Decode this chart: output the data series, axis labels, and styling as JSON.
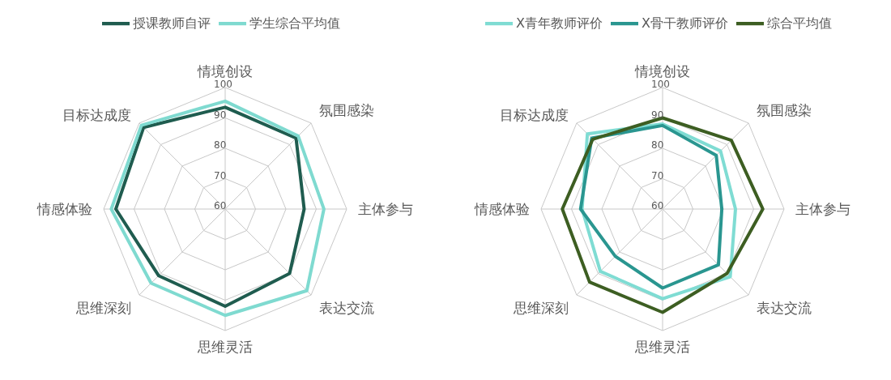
{
  "chart_data": [
    {
      "type": "radar",
      "categories": [
        "情境创设",
        "氛围感染",
        "主体参与",
        "表达交流",
        "思维灵活",
        "思维深刻",
        "情感体验",
        "目标达成度"
      ],
      "series": [
        {
          "name": "授课教师自评",
          "color": "#1f5c4f",
          "values": [
            93.5,
            93,
            86,
            90,
            92,
            91,
            96,
            98
          ]
        },
        {
          "name": "学生综合平均值",
          "color": "#7fdad0",
          "values": [
            95.5,
            94,
            92.5,
            98,
            95,
            94.5,
            97.5,
            99
          ]
        }
      ],
      "ylim": [
        60,
        100
      ],
      "yticks": [
        60,
        70,
        80,
        90,
        100
      ],
      "grid": true,
      "legend": "top"
    },
    {
      "type": "radar",
      "categories": [
        "情境创设",
        "氛围感染",
        "主体参与",
        "表达交流",
        "思维灵活",
        "思维深刻",
        "情感体验",
        "目标达成度"
      ],
      "series": [
        {
          "name": "X青年教师评价",
          "color": "#7fdcd3",
          "values": [
            88,
            87,
            84,
            91.5,
            89.5,
            89,
            86.5,
            95
          ]
        },
        {
          "name": "X骨干教师评价",
          "color": "#2a9690",
          "values": [
            87.5,
            85,
            79.5,
            86,
            86,
            82,
            87,
            93
          ]
        },
        {
          "name": "综合平均值",
          "color": "#3d5e22",
          "values": [
            90,
            92,
            93,
            90,
            94,
            94,
            93,
            92.5
          ]
        }
      ],
      "ylim": [
        60,
        100
      ],
      "yticks": [
        60,
        70,
        80,
        90,
        100
      ],
      "grid": true,
      "legend": "top"
    }
  ]
}
